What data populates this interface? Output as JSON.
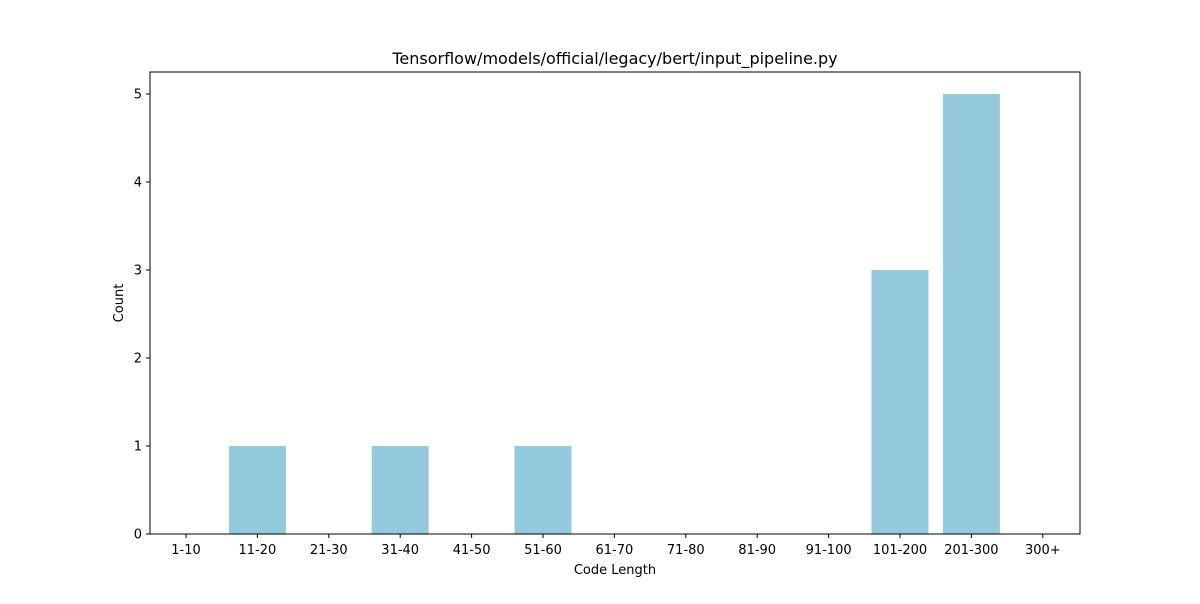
{
  "chart_data": {
    "type": "bar",
    "title": "Tensorflow/models/official/legacy/bert/input_pipeline.py",
    "xlabel": "Code Length",
    "ylabel": "Count",
    "categories": [
      "1-10",
      "11-20",
      "21-30",
      "31-40",
      "41-50",
      "51-60",
      "61-70",
      "71-80",
      "81-90",
      "91-100",
      "101-200",
      "201-300",
      "300+"
    ],
    "values": [
      0,
      1,
      0,
      1,
      0,
      1,
      0,
      0,
      0,
      0,
      3,
      5,
      0
    ],
    "ylim": [
      0,
      5.25
    ],
    "yticks": [
      0,
      1,
      2,
      3,
      4,
      5
    ],
    "bar_color": "#95c9dd",
    "grid": false,
    "legend": "none"
  }
}
